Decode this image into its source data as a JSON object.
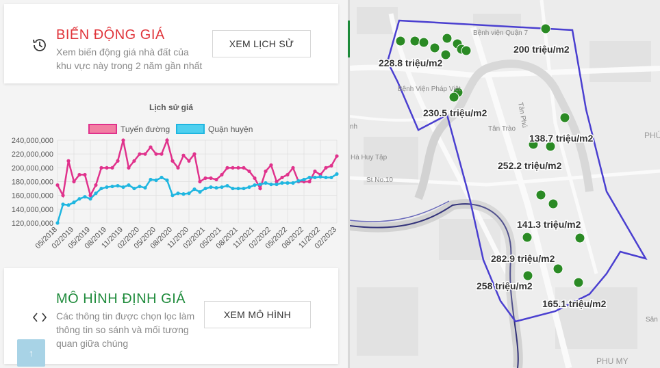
{
  "price_change": {
    "title": "BIẾN ĐỘNG GIÁ",
    "desc_line1": "Xem biến động giá nhà đất của",
    "desc_line2": "khu vực này trong 2 năm gần nhất",
    "button": "XEM LỊCH SỬ",
    "title_color": "#e0353b",
    "icon": "history-icon"
  },
  "valuation_model": {
    "title": "MÔ HÌNH ĐỊNH GIÁ",
    "desc_line1": "Các thông tin được chọn lọc làm",
    "desc_line2": "thông tin so sánh và mối tương",
    "desc_line3": "quan giữa chúng",
    "button": "XEM MÔ HÌNH",
    "title_color": "#1d8a3a",
    "icon": "code-icon"
  },
  "back_to_top": {
    "label": "↑",
    "icon": "arrow-up-icon"
  },
  "chart_data": {
    "type": "line",
    "title": "Lịch sử giá",
    "legend_position": "top",
    "grid": true,
    "ylim": [
      120000000,
      240000000
    ],
    "yticks": [
      "240,000,000",
      "220,000,000",
      "200,000,000",
      "180,000,000",
      "160,000,000",
      "140,000,000",
      "120,000,000"
    ],
    "xticks": [
      "05/2018",
      "02/2019",
      "05/2019",
      "08/2019",
      "11/2019",
      "02/2020",
      "05/2020",
      "08/2020",
      "11/2020",
      "02/2021",
      "05/2021",
      "08/2021",
      "11/2021",
      "02/2022",
      "05/2022",
      "08/2022",
      "11/2022",
      "02/2023"
    ],
    "series": [
      {
        "name": "Tuyến đường",
        "color": "#e0328c",
        "values": [
          175000000,
          160000000,
          210000000,
          180000000,
          190000000,
          190000000,
          160000000,
          175000000,
          200000000,
          200000000,
          200000000,
          210000000,
          240000000,
          200000000,
          210000000,
          220000000,
          220000000,
          230000000,
          220000000,
          220000000,
          240000000,
          210000000,
          200000000,
          218000000,
          210000000,
          220000000,
          180000000,
          185000000,
          185000000,
          183000000,
          190000000,
          200000000,
          200000000,
          200000000,
          200000000,
          195000000,
          185000000,
          170000000,
          195000000,
          204000000,
          180000000,
          186000000,
          190000000,
          200000000,
          180000000,
          180000000,
          180000000,
          195000000,
          190000000,
          200000000,
          203000000,
          217000000
        ]
      },
      {
        "name": "Quận huyện",
        "color": "#1fb6e0",
        "values": [
          120000000,
          147000000,
          146000000,
          150000000,
          155000000,
          158000000,
          155000000,
          163000000,
          170000000,
          172000000,
          173000000,
          174000000,
          172000000,
          175000000,
          170000000,
          173000000,
          171000000,
          183000000,
          182000000,
          186000000,
          182000000,
          160000000,
          163000000,
          162000000,
          163000000,
          169000000,
          165000000,
          170000000,
          172000000,
          171000000,
          172000000,
          174000000,
          170000000,
          170000000,
          170000000,
          172000000,
          175000000,
          176000000,
          178000000,
          176000000,
          176000000,
          178000000,
          178000000,
          178000000,
          181000000,
          183000000,
          186000000,
          186000000,
          187000000,
          186000000,
          186000000,
          191000000
        ]
      }
    ]
  },
  "map": {
    "poi": [
      "Bệnh viện Quận 7",
      "Bệnh Viện Pháp Việt",
      "Tân Trào",
      "Tân Phú",
      "Hà Huy Tập",
      "St No.10",
      "PHÚ",
      "PHU MY",
      "Sân",
      "nh"
    ],
    "price_labels": [
      "200 triệu/m2",
      "228.8 triệu/m2",
      "230.5 triệu/m2",
      "138.7 triệu/m2",
      "252.2 triệu/m2",
      "141.3 triệu/m2",
      "282.9 triệu/m2",
      "258 triệu/m2",
      "165.1 triệu/m2"
    ],
    "marker_color": "#2a8a24",
    "boundary_color": "#4a3fd0"
  }
}
